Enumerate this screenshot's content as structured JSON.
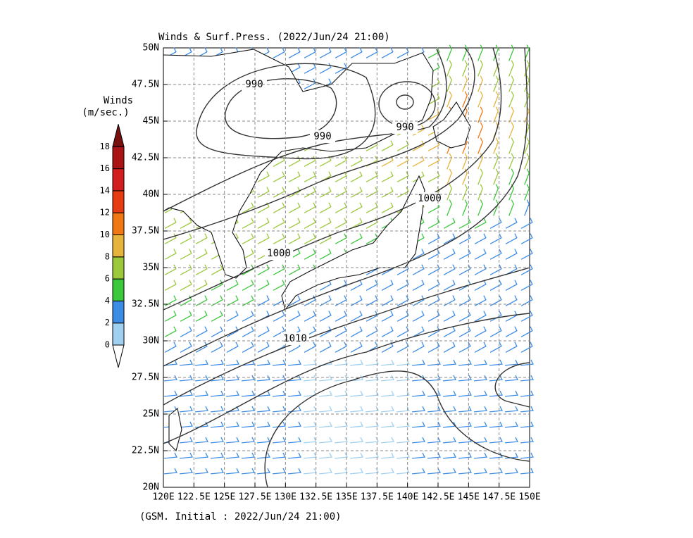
{
  "title": "Winds & Surf.Press. (2022/Jun/24 21:00)",
  "footer": "(GSM. Initial : 2022/Jun/24 21:00)",
  "lon_ticks": [
    "120E",
    "122.5E",
    "125E",
    "127.5E",
    "130E",
    "132.5E",
    "135E",
    "137.5E",
    "140E",
    "142.5E",
    "145E",
    "147.5E",
    "150E"
  ],
  "lat_ticks": [
    "20N",
    "22.5N",
    "25N",
    "27.5N",
    "30N",
    "32.5N",
    "35N",
    "37.5N",
    "40N",
    "42.5N",
    "45N",
    "47.5N",
    "50N"
  ],
  "colorbar": {
    "title": "Winds",
    "unit": "(m/sec.)",
    "ticks": [
      0,
      2,
      4,
      6,
      8,
      10,
      12,
      14,
      16,
      18
    ],
    "colors": [
      "#a0d0f0",
      "#3c8ce6",
      "#3cc83c",
      "#9cc83c",
      "#e6b43c",
      "#f07814",
      "#e63c14",
      "#d21e1e",
      "#aa1414",
      "#781010"
    ]
  },
  "isobar_labels": [
    "990",
    "990",
    "990",
    "1000",
    "1000",
    "1010"
  ]
}
